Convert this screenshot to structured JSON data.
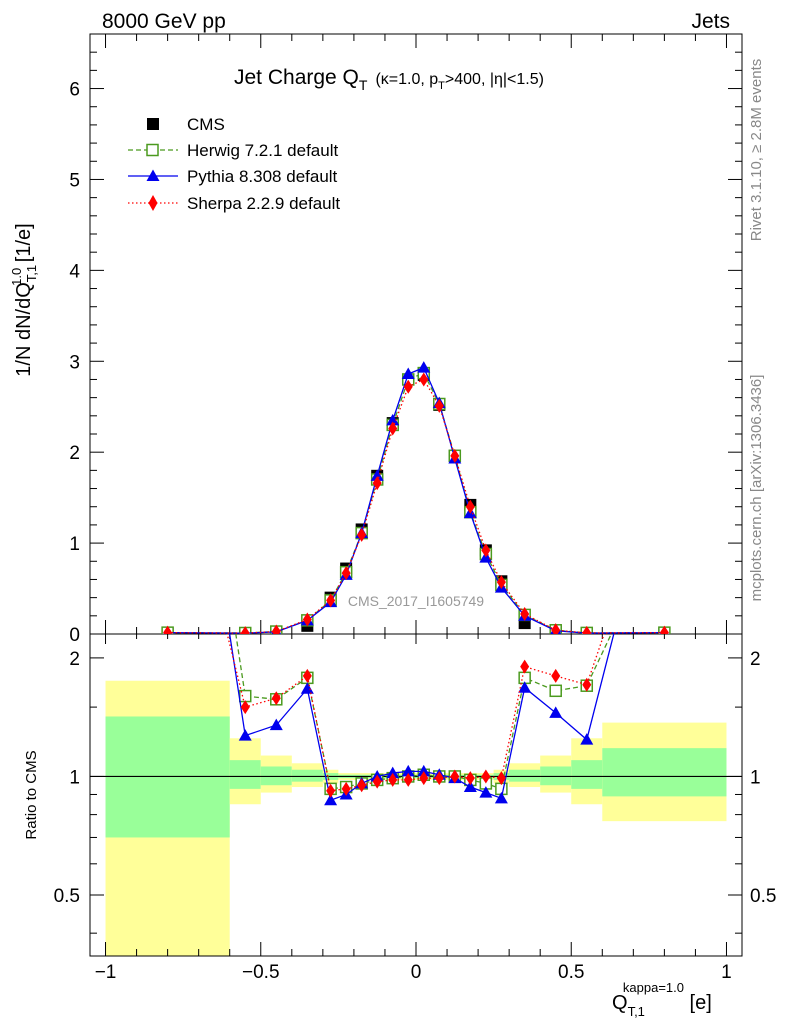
{
  "header": {
    "left": "8000 GeV pp",
    "right": "Jets"
  },
  "side_labels": {
    "rivet": "Rivet 3.1.10, ≥ 2.8M events",
    "mcplots": "mcplots.cern.ch [arXiv:1306.3436]"
  },
  "watermark": "CMS_2017_I1605749",
  "title": {
    "main": "Jet Charge Q",
    "main_sub": "T",
    "cond_kappa": "(κ=1.0, p",
    "cond_sub": "T",
    "cond_rest": ">400, |η|<1.5)"
  },
  "axes": {
    "ylabel_main": "1/N dN/dQ",
    "ylabel_main_sup": "1.0",
    "ylabel_main_sub": "T,1",
    "ylabel_main_unit": " [1/e]",
    "ylabel_ratio": "Ratio to CMS",
    "xlabel": "Q",
    "xlabel_sup": "kappa=1.0",
    "xlabel_sub": "T,1",
    "xlabel_unit": " [e]"
  },
  "colors": {
    "cms": "#000000",
    "herwig": "#4b9a1f",
    "pythia": "#0000ee",
    "sherpa": "#ff0000",
    "band_inner": "#99ff99",
    "band_outer": "#ffff99"
  },
  "chart_data": {
    "type": "line",
    "x_range": [
      -1.05,
      1.05
    ],
    "main_ylim": [
      0,
      6.6
    ],
    "ratio_ylim": [
      0.35,
      2.3
    ],
    "main_yticks": [
      0,
      1,
      2,
      3,
      4,
      5,
      6
    ],
    "main_ytick_labels": [
      "0",
      "1",
      "2",
      "3",
      "4",
      "5",
      "6"
    ],
    "ratio_yticks": [
      0.5,
      1,
      2
    ],
    "ratio_ytick_labels": [
      "0.5",
      "1",
      "2"
    ],
    "xticks": [
      -1,
      -0.5,
      0,
      0.5,
      1
    ],
    "xtick_labels": [
      "−1",
      "−0.5",
      "0",
      "0.5",
      "1"
    ],
    "legend_position": "top-left",
    "x": [
      -0.8,
      -0.55,
      -0.45,
      -0.35,
      -0.275,
      -0.225,
      -0.175,
      -0.125,
      -0.075,
      -0.025,
      0.025,
      0.075,
      0.125,
      0.175,
      0.225,
      0.275,
      0.35,
      0.45,
      0.55,
      0.8
    ],
    "cms": [
      0.005,
      0.007,
      0.017,
      0.09,
      0.4,
      0.72,
      1.15,
      1.74,
      2.32,
      2.8,
      2.85,
      2.52,
      1.96,
      1.42,
      0.92,
      0.58,
      0.12,
      0.025,
      0.007,
      0.005
    ],
    "series": [
      {
        "name": "Herwig 7.2.1 default",
        "values": [
          0.015,
          0.011,
          0.027,
          0.15,
          0.37,
          0.68,
          1.11,
          1.7,
          2.3,
          2.8,
          2.87,
          2.53,
          1.96,
          1.34,
          0.88,
          0.54,
          0.21,
          0.041,
          0.012,
          0.015
        ]
      },
      {
        "name": "Pythia 8.308 default",
        "values": [
          0.015,
          0.009,
          0.023,
          0.15,
          0.35,
          0.65,
          1.11,
          1.74,
          2.35,
          2.86,
          2.93,
          2.54,
          1.93,
          1.33,
          0.84,
          0.51,
          0.2,
          0.036,
          0.009,
          0.015
        ]
      },
      {
        "name": "Sherpa 2.2.9 default",
        "values": [
          0.015,
          0.01,
          0.027,
          0.16,
          0.37,
          0.67,
          1.09,
          1.66,
          2.26,
          2.72,
          2.8,
          2.51,
          1.96,
          1.4,
          0.92,
          0.57,
          0.22,
          0.043,
          0.012,
          0.015
        ]
      }
    ],
    "ratio_x": [
      -0.55,
      -0.45,
      -0.35,
      -0.275,
      -0.225,
      -0.175,
      -0.125,
      -0.075,
      -0.025,
      0.025,
      0.075,
      0.125,
      0.175,
      0.225,
      0.275,
      0.35,
      0.45,
      0.55
    ],
    "ratio_series": [
      {
        "name": "Herwig 7.2.1 default",
        "values": [
          1.6,
          1.57,
          1.78,
          0.93,
          0.94,
          0.96,
          0.98,
          0.99,
          1.0,
          1.01,
          1.0,
          1.0,
          0.98,
          0.96,
          0.93,
          1.78,
          1.65,
          1.7
        ]
      },
      {
        "name": "Pythia 8.308 default",
        "values": [
          1.27,
          1.35,
          1.67,
          0.87,
          0.9,
          0.96,
          1.0,
          1.02,
          1.03,
          1.03,
          1.01,
          0.99,
          0.94,
          0.91,
          0.88,
          1.68,
          1.45,
          1.24
        ]
      },
      {
        "name": "Sherpa 2.2.9 default",
        "values": [
          1.5,
          1.58,
          1.8,
          0.92,
          0.93,
          0.95,
          0.97,
          0.98,
          0.98,
          0.99,
          0.99,
          1.0,
          0.99,
          1.0,
          0.99,
          1.9,
          1.8,
          1.71
        ]
      }
    ],
    "uncertainty_bands": [
      {
        "x": [
          -1.0,
          -0.6
        ],
        "inner": [
          0.7,
          1.42
        ],
        "outer": [
          0.34,
          1.75
        ]
      },
      {
        "x": [
          -0.6,
          -0.5
        ],
        "inner": [
          0.93,
          1.1
        ],
        "outer": [
          0.85,
          1.25
        ]
      },
      {
        "x": [
          -0.5,
          -0.4
        ],
        "inner": [
          0.95,
          1.06
        ],
        "outer": [
          0.91,
          1.13
        ]
      },
      {
        "x": [
          -0.4,
          -0.3
        ],
        "inner": [
          0.97,
          1.04
        ],
        "outer": [
          0.94,
          1.08
        ]
      },
      {
        "x": [
          -0.3,
          -0.25
        ],
        "inner": [
          0.98,
          1.02
        ],
        "outer": [
          0.96,
          1.04
        ]
      },
      {
        "x": [
          -0.25,
          0.25
        ],
        "inner": [
          0.99,
          1.01
        ],
        "outer": [
          0.98,
          1.02
        ]
      },
      {
        "x": [
          0.25,
          0.3
        ],
        "inner": [
          0.98,
          1.02
        ],
        "outer": [
          0.96,
          1.04
        ]
      },
      {
        "x": [
          0.3,
          0.4
        ],
        "inner": [
          0.97,
          1.04
        ],
        "outer": [
          0.94,
          1.08
        ]
      },
      {
        "x": [
          0.4,
          0.5
        ],
        "inner": [
          0.95,
          1.06
        ],
        "outer": [
          0.91,
          1.13
        ]
      },
      {
        "x": [
          0.5,
          0.6
        ],
        "inner": [
          0.93,
          1.1
        ],
        "outer": [
          0.85,
          1.25
        ]
      },
      {
        "x": [
          0.6,
          1.0
        ],
        "inner": [
          0.89,
          1.18
        ],
        "outer": [
          0.77,
          1.37
        ]
      }
    ]
  }
}
